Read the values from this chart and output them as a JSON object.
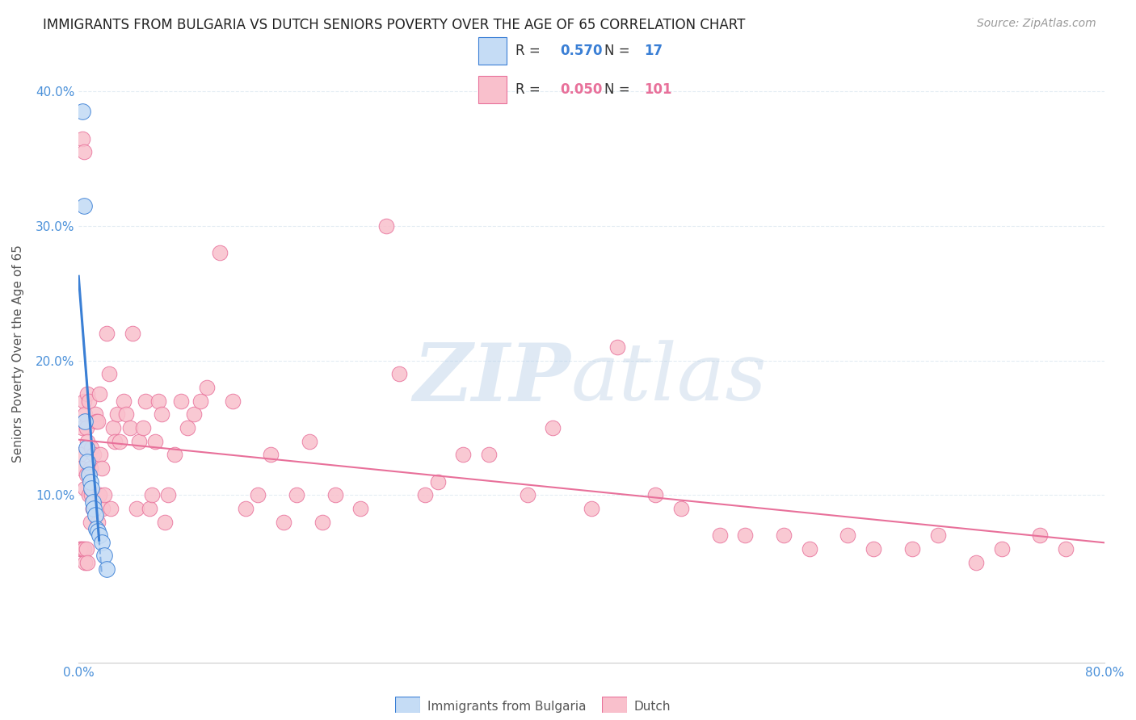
{
  "title": "IMMIGRANTS FROM BULGARIA VS DUTCH SENIORS POVERTY OVER THE AGE OF 65 CORRELATION CHART",
  "source": "Source: ZipAtlas.com",
  "ylabel": "Seniors Poverty Over the Age of 65",
  "legend_blue_r": "0.570",
  "legend_blue_n": "17",
  "legend_pink_r": "0.050",
  "legend_pink_n": "101",
  "legend_label_blue": "Immigrants from Bulgaria",
  "legend_label_pink": "Dutch",
  "watermark_zip": "ZIP",
  "watermark_atlas": "atlas",
  "blue_scatter_color": "#c5dcf5",
  "blue_line_color": "#3a7fd5",
  "pink_scatter_color": "#f9c0cc",
  "pink_line_color": "#e8709a",
  "background_color": "#ffffff",
  "grid_color": "#dde8f0",
  "blue_x": [
    0.003,
    0.004,
    0.005,
    0.006,
    0.007,
    0.008,
    0.009,
    0.01,
    0.011,
    0.012,
    0.013,
    0.014,
    0.015,
    0.016,
    0.018,
    0.02,
    0.022
  ],
  "blue_y": [
    0.385,
    0.315,
    0.155,
    0.135,
    0.125,
    0.115,
    0.11,
    0.105,
    0.095,
    0.09,
    0.085,
    0.075,
    0.073,
    0.07,
    0.065,
    0.055,
    0.045
  ],
  "pink_x": [
    0.001,
    0.002,
    0.003,
    0.003,
    0.004,
    0.004,
    0.005,
    0.005,
    0.006,
    0.006,
    0.007,
    0.007,
    0.008,
    0.008,
    0.009,
    0.009,
    0.01,
    0.01,
    0.011,
    0.011,
    0.012,
    0.013,
    0.014,
    0.015,
    0.015,
    0.016,
    0.016,
    0.017,
    0.018,
    0.019,
    0.02,
    0.022,
    0.024,
    0.025,
    0.027,
    0.028,
    0.03,
    0.032,
    0.035,
    0.037,
    0.04,
    0.042,
    0.045,
    0.047,
    0.05,
    0.052,
    0.055,
    0.057,
    0.06,
    0.062,
    0.065,
    0.067,
    0.07,
    0.075,
    0.08,
    0.085,
    0.09,
    0.095,
    0.1,
    0.11,
    0.12,
    0.13,
    0.14,
    0.15,
    0.16,
    0.17,
    0.18,
    0.19,
    0.2,
    0.22,
    0.24,
    0.25,
    0.27,
    0.28,
    0.3,
    0.32,
    0.35,
    0.37,
    0.4,
    0.42,
    0.45,
    0.47,
    0.5,
    0.52,
    0.55,
    0.57,
    0.6,
    0.62,
    0.65,
    0.67,
    0.7,
    0.72,
    0.75,
    0.77,
    0.001,
    0.002,
    0.003,
    0.004,
    0.005,
    0.006,
    0.007
  ],
  "pink_y": [
    0.13,
    0.12,
    0.15,
    0.365,
    0.17,
    0.355,
    0.16,
    0.105,
    0.15,
    0.115,
    0.14,
    0.175,
    0.1,
    0.17,
    0.08,
    0.12,
    0.1,
    0.135,
    0.09,
    0.09,
    0.13,
    0.16,
    0.155,
    0.08,
    0.155,
    0.1,
    0.175,
    0.13,
    0.12,
    0.09,
    0.1,
    0.22,
    0.19,
    0.09,
    0.15,
    0.14,
    0.16,
    0.14,
    0.17,
    0.16,
    0.15,
    0.22,
    0.09,
    0.14,
    0.15,
    0.17,
    0.09,
    0.1,
    0.14,
    0.17,
    0.16,
    0.08,
    0.1,
    0.13,
    0.17,
    0.15,
    0.16,
    0.17,
    0.18,
    0.28,
    0.17,
    0.09,
    0.1,
    0.13,
    0.08,
    0.1,
    0.14,
    0.08,
    0.1,
    0.09,
    0.3,
    0.19,
    0.1,
    0.11,
    0.13,
    0.13,
    0.1,
    0.15,
    0.09,
    0.21,
    0.1,
    0.09,
    0.07,
    0.07,
    0.07,
    0.06,
    0.07,
    0.06,
    0.06,
    0.07,
    0.05,
    0.06,
    0.07,
    0.06,
    0.06,
    0.06,
    0.06,
    0.06,
    0.05,
    0.06,
    0.05
  ],
  "xlim": [
    0.0,
    0.8
  ],
  "ylim": [
    -0.025,
    0.435
  ]
}
